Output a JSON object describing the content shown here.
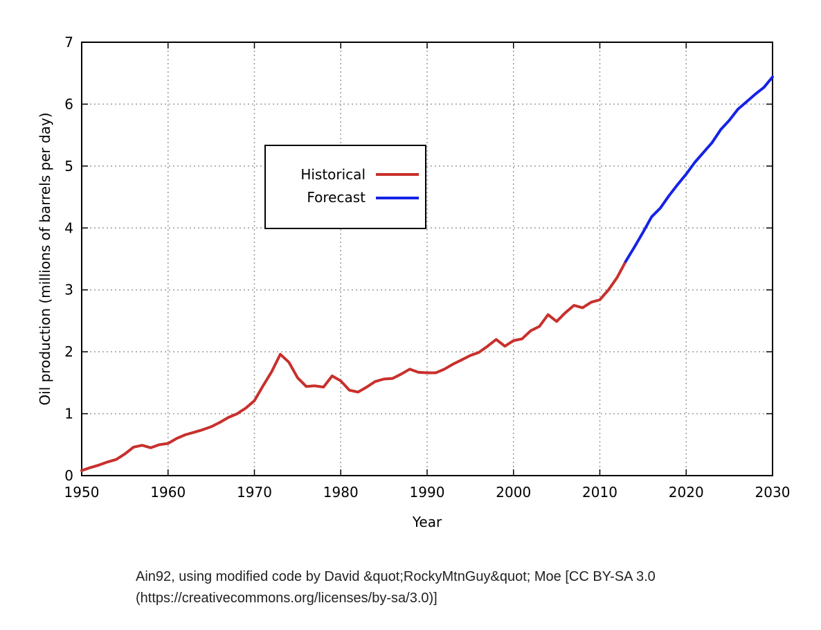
{
  "chart_data": {
    "type": "line",
    "xlabel": "Year",
    "ylabel": "Oil production (millions of barrels per day)",
    "xlim": [
      1950,
      2030
    ],
    "ylim": [
      0,
      7
    ],
    "xticks": [
      1950,
      1960,
      1970,
      1980,
      1990,
      2000,
      2010,
      2020,
      2030
    ],
    "yticks": [
      0,
      1,
      2,
      3,
      4,
      5,
      6,
      7
    ],
    "grid": true,
    "legend_position": "upper-left-center",
    "series": [
      {
        "name": "Historical",
        "color": "#c8302c",
        "x": [
          1950,
          1951,
          1952,
          1953,
          1954,
          1955,
          1956,
          1957,
          1958,
          1959,
          1960,
          1961,
          1962,
          1963,
          1964,
          1965,
          1966,
          1967,
          1968,
          1969,
          1970,
          1971,
          1972,
          1973,
          1974,
          1975,
          1976,
          1977,
          1978,
          1979,
          1980,
          1981,
          1982,
          1983,
          1984,
          1985,
          1986,
          1987,
          1988,
          1989,
          1990,
          1991,
          1992,
          1993,
          1994,
          1995,
          1996,
          1997,
          1998,
          1999,
          2000,
          2001,
          2002,
          2003,
          2004,
          2005,
          2006,
          2007,
          2008,
          2009,
          2010,
          2011,
          2012,
          2013
        ],
        "y": [
          0.08,
          0.13,
          0.17,
          0.22,
          0.26,
          0.35,
          0.46,
          0.49,
          0.45,
          0.5,
          0.52,
          0.6,
          0.66,
          0.7,
          0.74,
          0.79,
          0.86,
          0.94,
          1.0,
          1.09,
          1.21,
          1.45,
          1.68,
          1.96,
          1.83,
          1.58,
          1.44,
          1.45,
          1.43,
          1.61,
          1.53,
          1.38,
          1.35,
          1.43,
          1.52,
          1.56,
          1.57,
          1.64,
          1.72,
          1.67,
          1.66,
          1.66,
          1.72,
          1.8,
          1.87,
          1.94,
          1.99,
          2.09,
          2.2,
          2.09,
          2.18,
          2.21,
          2.34,
          2.41,
          2.6,
          2.49,
          2.63,
          2.75,
          2.71,
          2.8,
          2.84,
          3.0,
          3.2,
          3.46
        ]
      },
      {
        "name": "Forecast",
        "color": "#1523e6",
        "x": [
          2013,
          2014,
          2015,
          2016,
          2017,
          2018,
          2019,
          2020,
          2021,
          2022,
          2023,
          2024,
          2025,
          2026,
          2027,
          2028,
          2029,
          2030
        ],
        "y": [
          3.46,
          3.69,
          3.93,
          4.18,
          4.32,
          4.52,
          4.7,
          4.87,
          5.06,
          5.22,
          5.38,
          5.59,
          5.74,
          5.92,
          6.04,
          6.16,
          6.27,
          6.44
        ]
      }
    ]
  },
  "caption": {
    "line1": "Ain92, using modified code by David &quot;RockyMtnGuy&quot; Moe [CC BY-SA 3.0",
    "line2": "(https://creativecommons.org/licenses/by-sa/3.0)]"
  }
}
